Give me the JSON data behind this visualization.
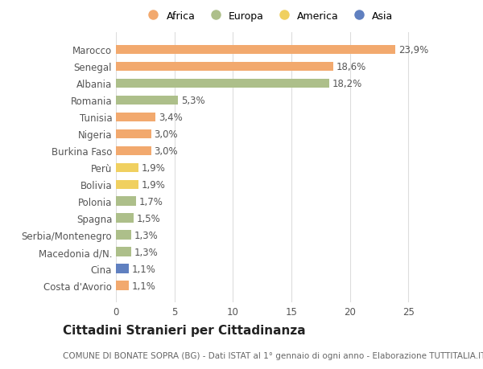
{
  "categories": [
    "Marocco",
    "Senegal",
    "Albania",
    "Romania",
    "Tunisia",
    "Nigeria",
    "Burkina Faso",
    "Perù",
    "Bolivia",
    "Polonia",
    "Spagna",
    "Serbia/Montenegro",
    "Macedonia d/N.",
    "Cina",
    "Costa d'Avorio"
  ],
  "values": [
    23.9,
    18.6,
    18.2,
    5.3,
    3.4,
    3.0,
    3.0,
    1.9,
    1.9,
    1.7,
    1.5,
    1.3,
    1.3,
    1.1,
    1.1
  ],
  "labels": [
    "23,9%",
    "18,6%",
    "18,2%",
    "5,3%",
    "3,4%",
    "3,0%",
    "3,0%",
    "1,9%",
    "1,9%",
    "1,7%",
    "1,5%",
    "1,3%",
    "1,3%",
    "1,1%",
    "1,1%"
  ],
  "continents": [
    "Africa",
    "Africa",
    "Europa",
    "Europa",
    "Africa",
    "Africa",
    "Africa",
    "America",
    "America",
    "Europa",
    "Europa",
    "Europa",
    "Europa",
    "Asia",
    "Africa"
  ],
  "continent_colors": {
    "Africa": "#F2A96E",
    "Europa": "#ADBF8A",
    "America": "#F0D060",
    "Asia": "#6080C0"
  },
  "legend_items": [
    "Africa",
    "Europa",
    "America",
    "Asia"
  ],
  "legend_colors": [
    "#F2A96E",
    "#ADBF8A",
    "#F0D060",
    "#6080C0"
  ],
  "title": "Cittadini Stranieri per Cittadinanza",
  "subtitle": "COMUNE DI BONATE SOPRA (BG) - Dati ISTAT al 1° gennaio di ogni anno - Elaborazione TUTTITALIA.IT",
  "xlim": [
    0,
    26
  ],
  "xticks": [
    0,
    5,
    10,
    15,
    20,
    25
  ],
  "background_color": "#ffffff",
  "grid_color": "#dddddd",
  "bar_height": 0.55,
  "label_fontsize": 8.5,
  "tick_fontsize": 8.5,
  "title_fontsize": 11,
  "subtitle_fontsize": 7.5
}
